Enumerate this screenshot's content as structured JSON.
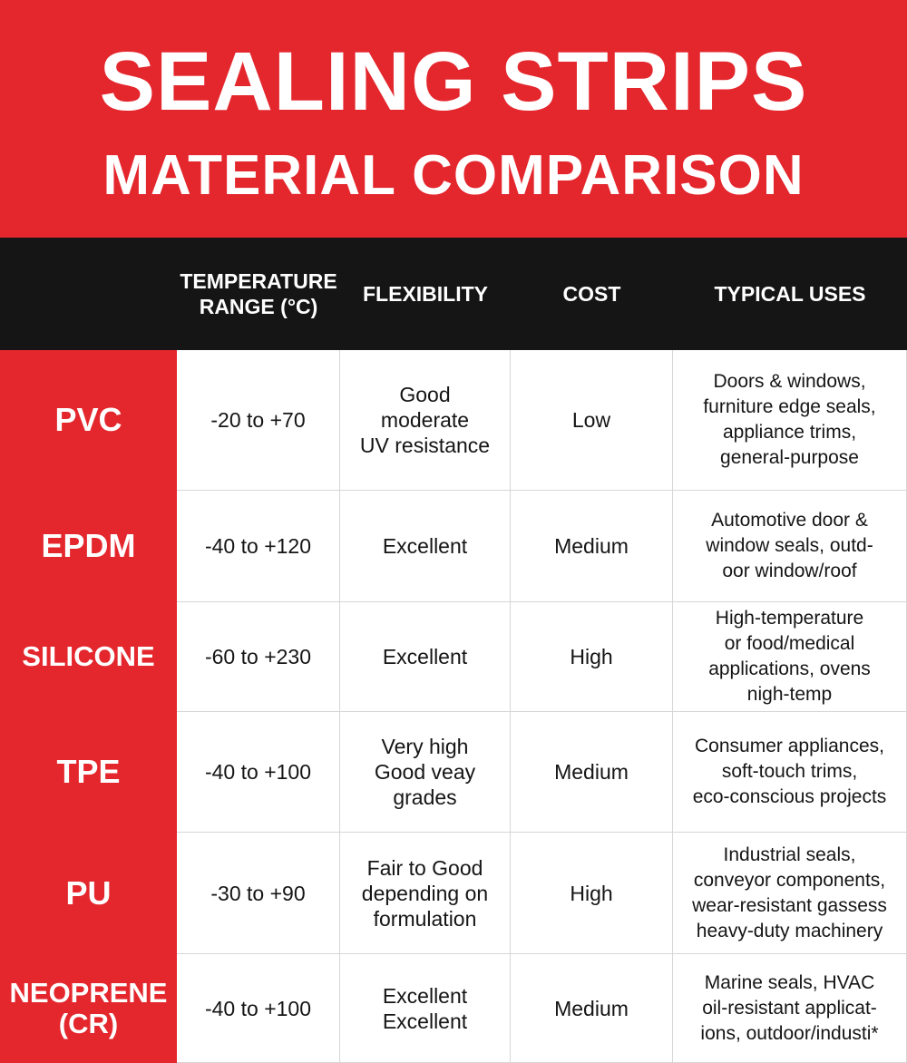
{
  "header": {
    "title": [
      "SEALING STRIPS",
      "MATERIAL COMPARISON"
    ]
  },
  "table": {
    "columns": [
      [
        "TEMPERATURE",
        "RANGE (°C)"
      ],
      [
        "FLEXIBILITY"
      ],
      [
        "COST"
      ],
      [
        "TYPICAL USES"
      ]
    ],
    "rows": [
      [
        [
          "PVC"
        ],
        [
          "-20 to +70"
        ],
        [
          "Good",
          "moderate",
          "UV resistance"
        ],
        [
          "Low"
        ],
        [
          "Doors & windows,",
          "furniture edge seals,",
          "appliance trims,",
          "general-purpose"
        ]
      ],
      [
        [
          "EPDM"
        ],
        [
          "-40 to +120"
        ],
        [
          "Excellent"
        ],
        [
          "Medium"
        ],
        [
          "Automotive door &",
          "window seals, outd-",
          "oor window/roof"
        ]
      ],
      [
        [
          "SILICONE"
        ],
        [
          "-60 to +230"
        ],
        [
          "Excellent"
        ],
        [
          "High"
        ],
        [
          "High-temperature",
          "or food/medical",
          "applications, ovens",
          "nigh-temp"
        ]
      ],
      [
        [
          "TPE"
        ],
        [
          "-40 to +100"
        ],
        [
          "Very high",
          "Good veay",
          "grades"
        ],
        [
          "Medium"
        ],
        [
          "Consumer appliances,",
          "soft-touch trims,",
          "eco-conscious projects"
        ]
      ],
      [
        [
          "PU"
        ],
        [
          "-30 to +90"
        ],
        [
          "Fair to Good",
          "depending on",
          "formulation"
        ],
        [
          "High"
        ],
        [
          "Industrial seals,",
          "conveyor components,",
          "wear-resistant gassess",
          "heavy-duty machinery"
        ]
      ],
      [
        [
          "NEOPRENE",
          "(CR)"
        ],
        [
          "-40 to +100"
        ],
        [
          "Excellent",
          "Excellent"
        ],
        [
          "Medium"
        ],
        [
          "Marine seals, HVAC",
          "oil-resistant applicat-",
          "ions, outdoor/industi*"
        ]
      ]
    ]
  }
}
